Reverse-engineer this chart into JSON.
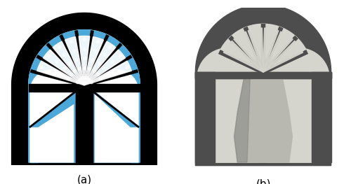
{
  "fig_width": 5.0,
  "fig_height": 2.63,
  "dpi": 100,
  "background_color": "#ffffff",
  "label_a": "(a)",
  "label_b": "(b)",
  "label_fontsize": 11,
  "black": "#000000",
  "blue": "#4ba8d8",
  "white": "#ffffff",
  "gray_dark": "#4d4d4d",
  "gray_mid": "#777777",
  "gray_light": "#b8b8b0",
  "gray_lighter": "#c8c8c0",
  "gray_lightest": "#d5d5cd"
}
